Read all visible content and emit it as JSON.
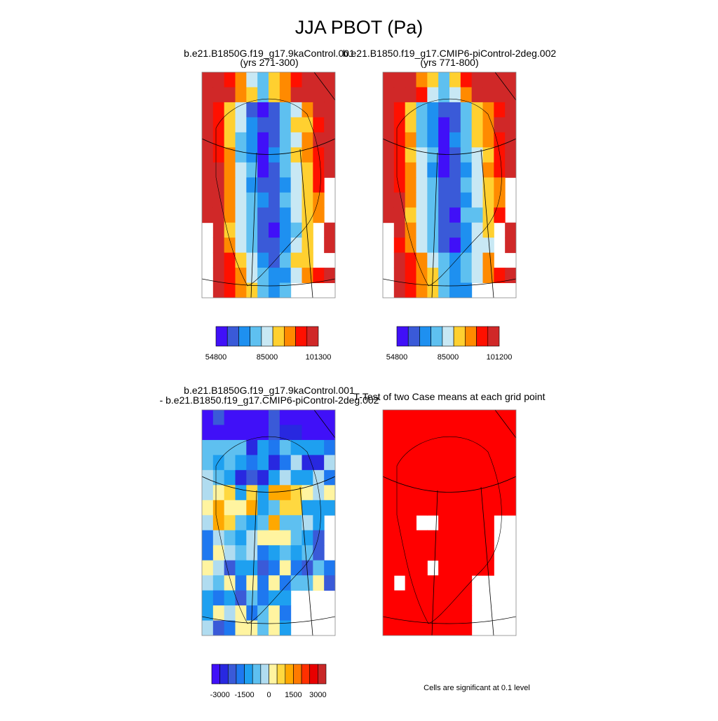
{
  "title": "JJA PBOT (Pa)",
  "panels": [
    {
      "title": [
        "b.e21.B1850G.f19_g17.9kaControl.001",
        "(yrs 271-300)"
      ]
    },
    {
      "title": [
        "b.e21.B1850.f19_g17.CMIP6-piControl-2deg.002",
        "(yrs 771-800)"
      ]
    },
    {
      "title": [
        "b.e21.B1850G.f19_g17.9kaControl.001",
        "- b.e21.B1850.f19_g17.CMIP6-piControl-2deg.002"
      ]
    },
    {
      "title": [
        "T-Test of two Case means at each grid point"
      ]
    }
  ],
  "colorbars": [
    {
      "colors": [
        "#4010f8",
        "#3a5ad8",
        "#1e90f0",
        "#5ec0f0",
        "#c8e8f4",
        "#ffd030",
        "#ff8a00",
        "#ff1000",
        "#d02828"
      ],
      "labels": [
        "54800",
        "85000",
        "101300"
      ]
    },
    {
      "colors": [
        "#4010f8",
        "#3a5ad8",
        "#1e90f0",
        "#5ec0f0",
        "#c8e8f4",
        "#ffd030",
        "#ff8a00",
        "#ff1000",
        "#d02828"
      ],
      "labels": [
        "54800",
        "85000",
        "101200"
      ]
    },
    {
      "colors": [
        "#4010f8",
        "#2828e0",
        "#3a5ad8",
        "#1e78f0",
        "#1ea0f0",
        "#5ec0f0",
        "#b0dcf0",
        "#fff4a0",
        "#ffd840",
        "#ffa800",
        "#ff7a00",
        "#ff3000",
        "#e80000",
        "#c82828"
      ],
      "labels": [
        "-3000",
        "-1500",
        "0",
        "1500",
        "3000"
      ]
    }
  ],
  "note": "Cells are significant at 0.1 level"
}
